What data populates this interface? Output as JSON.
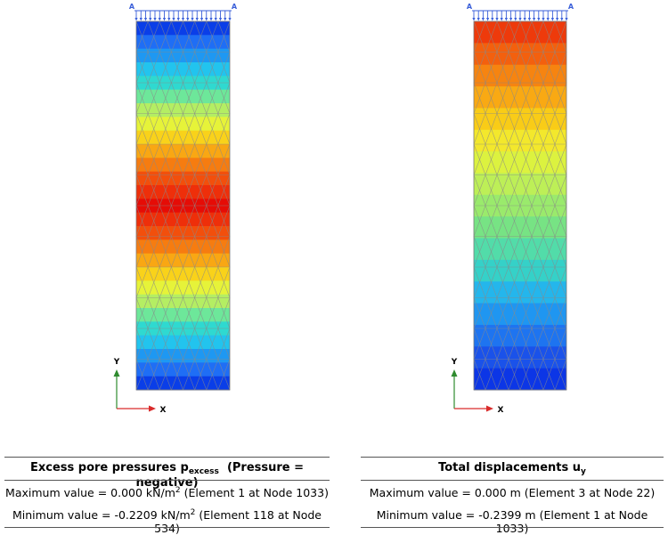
{
  "figures": [
    {
      "id": "pore",
      "legend_title": {
        "prefix": "Excess pore pressures p",
        "sub": "excess",
        "suffix": "(Pressure = negative)"
      },
      "max_line": {
        "text": "Maximum value = 0.000 kN/m",
        "sup": "2",
        "after": " (Element 1 at Node 1033)"
      },
      "min_line": {
        "text": "Minimum value = -0.2209 kN/m",
        "sup": "2",
        "after": " (Element 118 at Node 534)"
      },
      "band_colors": [
        "#0a3ee8",
        "#1f6ef5",
        "#1e98f2",
        "#22c4ee",
        "#2fd9d0",
        "#6de79a",
        "#b4ee63",
        "#e6f339",
        "#f9d21a",
        "#f9a713",
        "#f67c10",
        "#f24f0c",
        "#ee2f0a",
        "#e50c06",
        "#ee2f0a",
        "#f24f0c",
        "#f67c10",
        "#f9a713",
        "#f9d21a",
        "#e6f339",
        "#b4ee63",
        "#6de79a",
        "#2fd9d0",
        "#22c4ee",
        "#1e98f2",
        "#1f6ef5",
        "#0a3ee8"
      ],
      "axis_y": "Y",
      "axis_x": "X",
      "support_left": "A",
      "support_right": "A"
    },
    {
      "id": "disp",
      "legend_title": {
        "prefix": "Total displacements u",
        "sub": "y",
        "suffix": ""
      },
      "max_line": {
        "text": "Maximum value = 0.000 m (Element 3 at Node 22)",
        "sup": "",
        "after": ""
      },
      "min_line": {
        "text": "Minimum value = -0.2399 m (Element 1 at Node 1033)",
        "sup": "",
        "after": ""
      },
      "band_colors": [
        "#ee3a0b",
        "#f3600e",
        "#f68410",
        "#f9a913",
        "#f9cc17",
        "#f3e82c",
        "#dcf23f",
        "#bdef57",
        "#9aea6c",
        "#77e384",
        "#52dca9",
        "#35d1c8",
        "#24b6ec",
        "#1f96f1",
        "#1e74f0",
        "#1a52ea",
        "#0c36e6"
      ],
      "axis_y": "Y",
      "axis_x": "X",
      "support_left": "A",
      "support_right": "A"
    }
  ]
}
